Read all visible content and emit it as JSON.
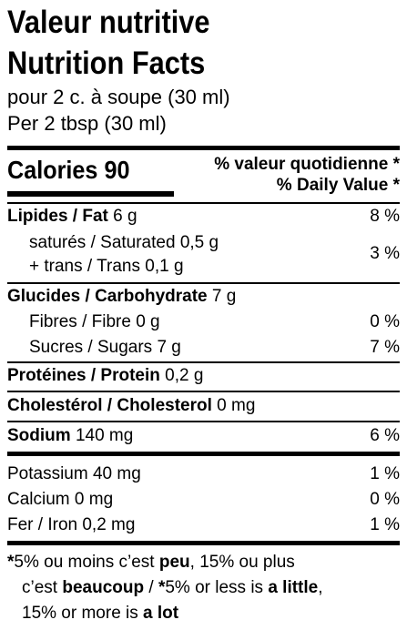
{
  "title_fr": "Valeur nutritive",
  "title_en": "Nutrition Facts",
  "serving_fr": "pour 2 c. à soupe (30 ml)",
  "serving_en": "Per 2 tbsp (30 ml)",
  "calories_label": "Calories 90",
  "dv_header_fr": "% valeur quotidienne",
  "dv_header_en": "% Daily Value",
  "dv_star": "*",
  "nutrients": {
    "fat": {
      "label": "Lipides / Fat",
      "amount": "6 g",
      "dv": "8 %"
    },
    "saturated": {
      "label": "saturés / Saturated",
      "amount": "0,5 g"
    },
    "trans": {
      "label": "+ trans / Trans",
      "amount": "0,1 g"
    },
    "sat_trans_dv": "3 %",
    "carbohydrate": {
      "label": "Glucides / Carbohydrate",
      "amount": "7 g"
    },
    "fibre": {
      "label": "Fibres / Fibre",
      "amount": "0 g",
      "dv": "0 %"
    },
    "sugars": {
      "label": "Sucres / Sugars",
      "amount": "7 g",
      "dv": "7 %"
    },
    "protein": {
      "label": "Protéines / Protein",
      "amount": "0,2 g"
    },
    "cholesterol": {
      "label": "Cholestérol / Cholesterol",
      "amount": "0 mg"
    },
    "sodium": {
      "label": "Sodium",
      "amount": "140 mg",
      "dv": "6 %"
    },
    "potassium": {
      "label": "Potassium",
      "amount": "40 mg",
      "dv": "1 %"
    },
    "calcium": {
      "label": "Calcium",
      "amount": "0 mg",
      "dv": "0 %"
    },
    "iron": {
      "label": "Fer / Iron",
      "amount": "0,2 mg",
      "dv": "1 %"
    }
  },
  "footnote": {
    "line1_a": "5% ou moins c’est ",
    "line1_b": "peu",
    "line1_c": ", 15% ou plus",
    "line2_a": "c’est ",
    "line2_b": "beaucoup",
    "line2_c": " / ",
    "line2_d": "5% or less is ",
    "line2_e": "a little",
    "line2_f": ",",
    "line3_a": "15% or more is ",
    "line3_b": "a lot"
  }
}
